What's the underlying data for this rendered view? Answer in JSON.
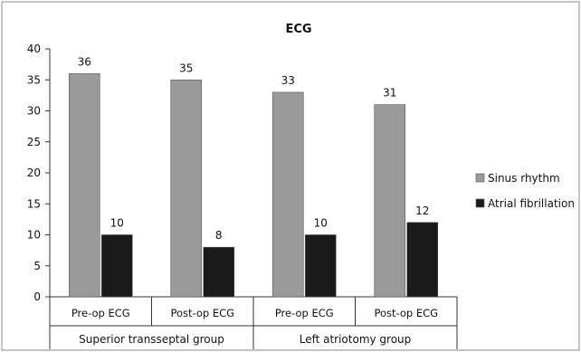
{
  "chart_data": {
    "type": "bar",
    "title": "ECG",
    "xlabel": "",
    "ylabel": "",
    "ylim": [
      0,
      40
    ],
    "yticks": [
      0,
      5,
      10,
      15,
      20,
      25,
      30,
      35,
      40
    ],
    "categories": [
      "Pre-op ECG",
      "Post-op ECG",
      "Pre-op ECG",
      "Post-op ECG"
    ],
    "groups": [
      {
        "label": "Superior transseptal group",
        "categories": [
          "Pre-op ECG",
          "Post-op ECG"
        ]
      },
      {
        "label": "Left atriotomy group",
        "categories": [
          "Pre-op ECG",
          "Post-op ECG"
        ]
      }
    ],
    "series": [
      {
        "name": "Sinus rhythm",
        "color": "#9a9a9a",
        "values": [
          36,
          35,
          33,
          31
        ]
      },
      {
        "name": "Atrial fibrillation",
        "color": "#1a1a1a",
        "values": [
          10,
          8,
          10,
          12
        ]
      }
    ],
    "grid": false,
    "legend_position": "right"
  }
}
